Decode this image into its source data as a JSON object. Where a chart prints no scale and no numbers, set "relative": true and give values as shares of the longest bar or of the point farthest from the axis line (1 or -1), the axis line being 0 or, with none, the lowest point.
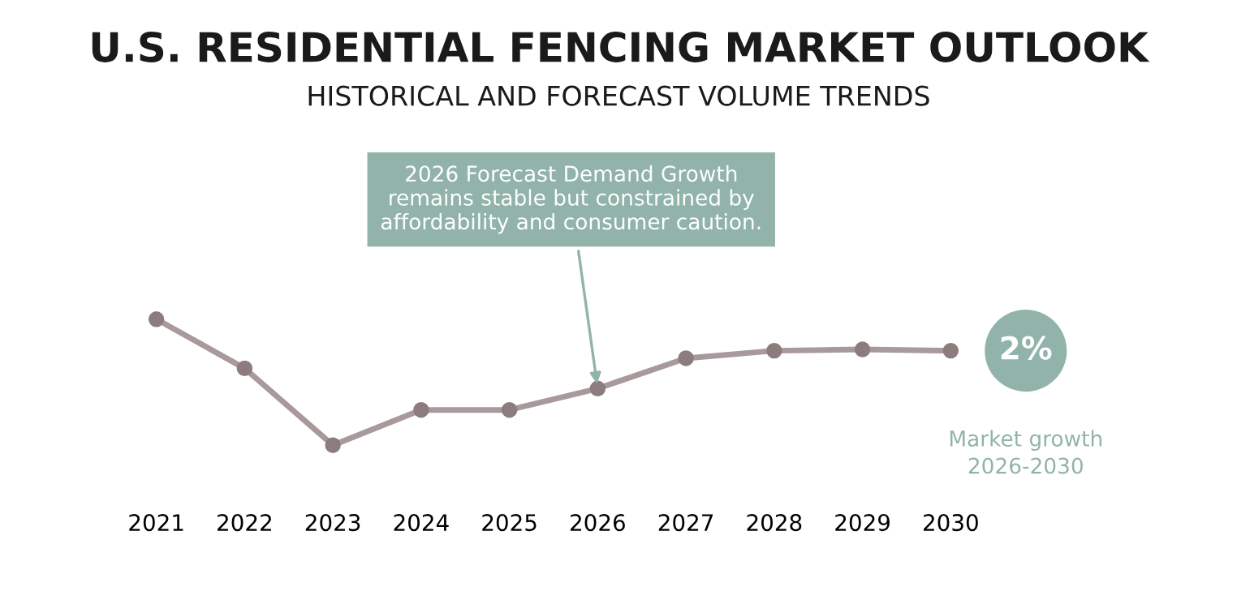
{
  "chart_data": {
    "type": "line",
    "title": "U.S. RESIDENTIAL FENCING MARKET OUTLOOK",
    "subtitle": "HISTORICAL AND FORECAST VOLUME TRENDS",
    "categories": [
      "2021",
      "2022",
      "2023",
      "2024",
      "2025",
      "2026",
      "2027",
      "2028",
      "2029",
      "2030"
    ],
    "relative": true,
    "series": [
      {
        "color": "#a8999a",
        "values": [
          1,
          0.61,
          0,
          0.28,
          0.28,
          0.45,
          0.69,
          0.75,
          0.76,
          0.75
        ]
      }
    ],
    "marker": "circle",
    "line_style": "solid",
    "grid": false,
    "legend": false,
    "tick_labels": "x",
    "annotations": [
      {
        "text": "2026 Forecast Demand Growth\nremains stable but constrained by\naffordability and consumer caution.",
        "x": "2026",
        "y": 0.45
      },
      "2%",
      "Market growth\n2026-2030"
    ]
  }
}
